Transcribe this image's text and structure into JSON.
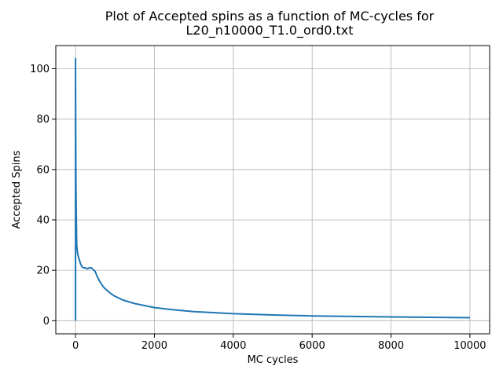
{
  "chart_data": {
    "type": "line",
    "title_lines": [
      "Plot of Accepted spins as a function of MC-cycles for",
      "L20_n10000_T1.0_ord0.txt"
    ],
    "xlabel": "MC cycles",
    "ylabel": "Accepted Spins",
    "xlim": [
      -500,
      10500
    ],
    "ylim": [
      -5.2,
      109.2
    ],
    "xticks": [
      0,
      2000,
      4000,
      6000,
      8000,
      10000
    ],
    "yticks": [
      0,
      20,
      40,
      60,
      80,
      100
    ],
    "grid": true,
    "series": [
      {
        "color": "#1f77b4",
        "x": [
          0,
          0,
          5,
          10,
          20,
          30,
          50,
          70,
          100,
          130,
          160,
          200,
          250,
          300,
          350,
          400,
          450,
          500,
          550,
          600,
          700,
          800,
          900,
          1000,
          1200,
          1500,
          2000,
          2500,
          3000,
          4000,
          5000,
          6000,
          7000,
          8000,
          9000,
          10000
        ],
        "y": [
          0,
          104,
          75,
          55,
          40,
          30,
          27,
          25.5,
          24,
          22.5,
          21.5,
          21,
          21,
          20.6,
          21,
          21,
          20.3,
          19.5,
          17.5,
          16,
          13.5,
          12,
          10.7,
          9.7,
          8.2,
          6.8,
          5.2,
          4.3,
          3.6,
          2.8,
          2.3,
          1.9,
          1.7,
          1.5,
          1.35,
          1.2
        ]
      }
    ]
  }
}
